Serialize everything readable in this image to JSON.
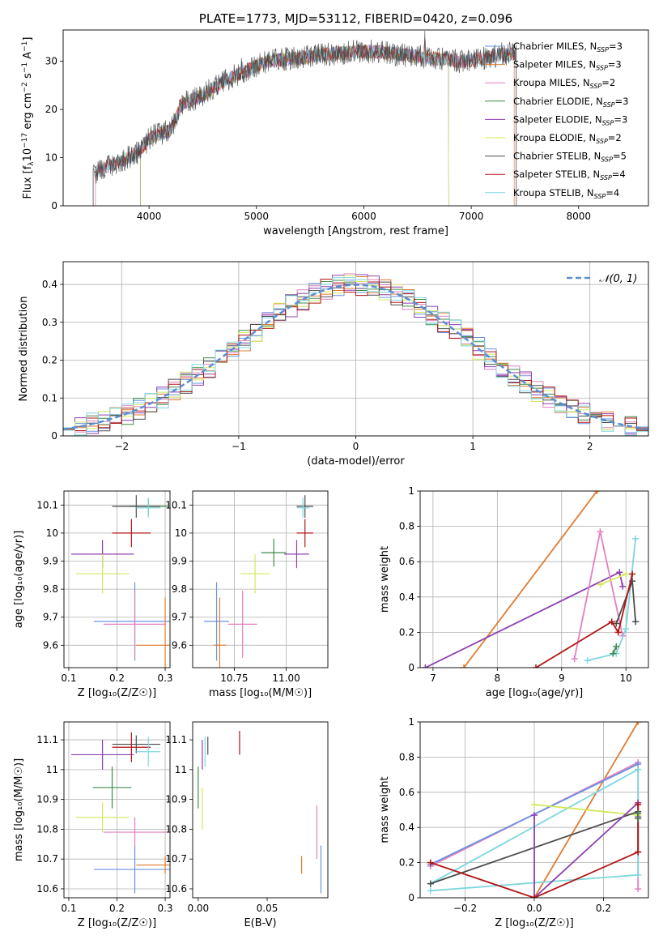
{
  "figure": {
    "title": "PLATE=1773, MJD=53112, FIBERID=0420, z=0.096",
    "series_colors": [
      "#6a93e0",
      "#e07b2e",
      "#e27fbf",
      "#3f8a4a",
      "#8e3fb0",
      "#d4e85a",
      "#4d4d4d",
      "#b31515",
      "#7dd6df"
    ]
  },
  "chart_data": [
    {
      "id": "spectrum",
      "type": "line",
      "title": "PLATE=1773, MJD=53112, FIBERID=0420, z=0.096",
      "xlabel": "wavelength [Angstrom, rest frame]",
      "ylabel_parts": [
        "Flux [f",
        "λ",
        "10",
        "−17",
        " erg cm",
        "−2",
        " s",
        "−1",
        " A",
        "−1",
        "]"
      ],
      "xlim": [
        3200,
        8650
      ],
      "ylim": [
        0,
        36.5
      ],
      "xticks": [
        4000,
        5000,
        6000,
        7000,
        8000
      ],
      "yticks": [
        0,
        10,
        20,
        30
      ],
      "grid": false,
      "legend_position": "top-right",
      "continuum_points": [
        [
          3480,
          6.5
        ],
        [
          3600,
          8
        ],
        [
          3800,
          10
        ],
        [
          3900,
          11
        ],
        [
          4000,
          14
        ],
        [
          4100,
          15
        ],
        [
          4200,
          15.5
        ],
        [
          4300,
          21
        ],
        [
          4500,
          23
        ],
        [
          4700,
          26
        ],
        [
          4900,
          28
        ],
        [
          5100,
          30
        ],
        [
          5300,
          30.5
        ],
        [
          5500,
          31
        ],
        [
          5700,
          31.5
        ],
        [
          5900,
          32
        ],
        [
          6100,
          32
        ],
        [
          6300,
          31.5
        ],
        [
          6500,
          31
        ],
        [
          6700,
          30.5
        ],
        [
          6900,
          30
        ],
        [
          7100,
          30.5
        ],
        [
          7300,
          31.5
        ],
        [
          7420,
          31.5
        ]
      ],
      "series": [
        {
          "name": "Chabrier MILES",
          "nssp": "3",
          "range": [
            3500,
            7400
          ]
        },
        {
          "name": "Salpeter MILES",
          "nssp": "3",
          "range": [
            3500,
            7400
          ]
        },
        {
          "name": "Kroupa MILES",
          "nssp": "2",
          "range": [
            3500,
            7420
          ]
        },
        {
          "name": "Chabrier ELODIE",
          "nssp": "3",
          "range": [
            3920,
            6790
          ]
        },
        {
          "name": "Salpeter ELODIE",
          "nssp": "3",
          "range": [
            3920,
            6790
          ]
        },
        {
          "name": "Kroupa ELODIE",
          "nssp": "2",
          "range": [
            3920,
            6790
          ]
        },
        {
          "name": "Chabrier STELIB",
          "nssp": "5",
          "range": [
            3480,
            7420
          ]
        },
        {
          "name": "Salpeter STELIB",
          "nssp": "4",
          "range": [
            3480,
            7420
          ]
        },
        {
          "name": "Kroupa STELIB",
          "nssp": "4",
          "range": [
            3480,
            7420
          ]
        }
      ]
    },
    {
      "id": "residuals",
      "type": "histogram",
      "xlabel": "(data-model)/error",
      "ylabel": "Normed distribution",
      "xlim": [
        -2.5,
        2.5
      ],
      "ylim": [
        0,
        0.46
      ],
      "xticks": [
        -2,
        -1,
        0,
        1,
        2
      ],
      "xticklabels": [
        "−2",
        "−1",
        "0",
        "1",
        "2"
      ],
      "yticks": [
        0.0,
        0.1,
        0.2,
        0.3,
        0.4
      ],
      "grid": true,
      "legend_label": "𝒩(0, 1)",
      "legend_position": "top-right",
      "bin_width": 0.1
    },
    {
      "id": "age_vs_z",
      "type": "scatter-errorbar",
      "xlabel": "Z [log₁₀(Z/Z☉)]",
      "ylabel": "age  [log₁₀(age/yr)]",
      "xlim": [
        0.09,
        0.31
      ],
      "ylim": [
        9.52,
        10.15
      ],
      "xticks": [
        0.1,
        0.2,
        0.3
      ],
      "yticks": [
        9.6,
        9.7,
        9.8,
        9.9,
        10.0,
        10.1
      ],
      "grid": true,
      "points": [
        {
          "series": 0,
          "x": 0.237,
          "y": 9.685,
          "xerr": 0.085,
          "yerr": 0.14
        },
        {
          "series": 1,
          "x": 0.3,
          "y": 9.6,
          "xerr": 0.06,
          "yerr": 0.17
        },
        {
          "series": 2,
          "x": 0.237,
          "y": 9.675,
          "xerr": 0.065,
          "yerr": 0.12
        },
        {
          "series": 3,
          "x": 0.265,
          "y": 10.095,
          "xerr": 0.04,
          "yerr": 0.03
        },
        {
          "series": 4,
          "x": 0.17,
          "y": 9.925,
          "xerr": 0.065,
          "yerr": 0.05
        },
        {
          "series": 5,
          "x": 0.17,
          "y": 9.855,
          "xerr": 0.055,
          "yerr": 0.07
        },
        {
          "series": 6,
          "x": 0.24,
          "y": 10.095,
          "xerr": 0.05,
          "yerr": 0.04
        },
        {
          "series": 7,
          "x": 0.23,
          "y": 10.0,
          "xerr": 0.04,
          "yerr": 0.05
        },
        {
          "series": 8,
          "x": 0.265,
          "y": 10.09,
          "xerr": 0.025,
          "yerr": 0.035
        }
      ]
    },
    {
      "id": "age_vs_mass",
      "type": "scatter-errorbar",
      "xlabel": "mass [log₁₀(M/M☉)]",
      "xlim": [
        10.55,
        11.2
      ],
      "ylim": [
        9.52,
        10.15
      ],
      "xticks": [
        10.75,
        11.0
      ],
      "xticklabels": [
        "10.75",
        "11.00"
      ],
      "yticks": [
        9.6,
        9.7,
        9.8,
        9.9,
        10.0,
        10.1
      ],
      "grid": true,
      "points": [
        {
          "series": 0,
          "x": 10.665,
          "y": 9.685,
          "xerr": 0.06,
          "yerr": 0.14
        },
        {
          "series": 1,
          "x": 10.68,
          "y": 9.6,
          "xerr": 0.03,
          "yerr": 0.17
        },
        {
          "series": 2,
          "x": 10.79,
          "y": 9.675,
          "xerr": 0.07,
          "yerr": 0.12
        },
        {
          "series": 3,
          "x": 10.94,
          "y": 9.93,
          "xerr": 0.06,
          "yerr": 0.05
        },
        {
          "series": 4,
          "x": 11.05,
          "y": 9.925,
          "xerr": 0.06,
          "yerr": 0.05
        },
        {
          "series": 5,
          "x": 10.85,
          "y": 9.855,
          "xerr": 0.07,
          "yerr": 0.07
        },
        {
          "series": 6,
          "x": 11.09,
          "y": 10.095,
          "xerr": 0.04,
          "yerr": 0.04
        },
        {
          "series": 7,
          "x": 11.09,
          "y": 10.0,
          "xerr": 0.04,
          "yerr": 0.05
        },
        {
          "series": 8,
          "x": 11.08,
          "y": 10.09,
          "xerr": 0.03,
          "yerr": 0.035
        }
      ]
    },
    {
      "id": "weight_vs_age",
      "type": "line",
      "xlabel": "age  [log₁₀(age/yr)]",
      "ylabel": "mass weight",
      "xlim": [
        6.8,
        10.35
      ],
      "ylim": [
        0,
        1.0
      ],
      "xticks": [
        7,
        8,
        9,
        10
      ],
      "yticks": [
        0.0,
        0.2,
        0.4,
        0.6,
        0.8,
        1.0
      ],
      "grid": true,
      "lines": [
        {
          "series": 1,
          "points": [
            [
              7.48,
              0.0
            ],
            [
              9.55,
              1.0
            ]
          ]
        },
        {
          "series": 4,
          "points": [
            [
              6.88,
              0.0
            ],
            [
              9.9,
              0.54
            ],
            [
              9.95,
              0.46
            ]
          ]
        },
        {
          "series": 2,
          "points": [
            [
              9.2,
              0.05
            ],
            [
              9.6,
              0.77
            ],
            [
              9.95,
              0.18
            ]
          ]
        },
        {
          "series": 5,
          "points": [
            [
              9.6,
              0.47
            ],
            [
              10.0,
              0.53
            ]
          ]
        },
        {
          "series": 8,
          "points": [
            [
              9.4,
              0.04
            ],
            [
              9.85,
              0.08
            ],
            [
              10.0,
              0.22
            ],
            [
              10.15,
              0.73
            ]
          ]
        },
        {
          "series": 6,
          "points": [
            [
              9.85,
              0.25
            ],
            [
              10.1,
              0.49
            ],
            [
              10.15,
              0.26
            ]
          ]
        },
        {
          "series": 7,
          "points": [
            [
              8.6,
              0.0
            ],
            [
              9.78,
              0.26
            ],
            [
              9.88,
              0.2
            ],
            [
              10.1,
              0.53
            ]
          ]
        },
        {
          "series": 3,
          "points": [
            [
              9.8,
              0.08
            ],
            [
              9.85,
              0.12
            ]
          ]
        }
      ]
    },
    {
      "id": "mass_vs_z",
      "type": "scatter-errorbar",
      "xlabel": "Z [log₁₀(Z/Z☉)]",
      "ylabel": "mass [log₁₀(M/M☉)]",
      "xlim": [
        0.09,
        0.31
      ],
      "ylim": [
        10.57,
        11.16
      ],
      "xticks": [
        0.1,
        0.2,
        0.3
      ],
      "yticks": [
        10.6,
        10.7,
        10.8,
        10.9,
        11.0,
        11.1
      ],
      "grid": true,
      "points": [
        {
          "series": 0,
          "x": 0.237,
          "y": 10.665,
          "xerr": 0.085,
          "yerr": 0.08
        },
        {
          "series": 1,
          "x": 0.3,
          "y": 10.68,
          "xerr": 0.06,
          "yerr": 0.03
        },
        {
          "series": 2,
          "x": 0.237,
          "y": 10.79,
          "xerr": 0.065,
          "yerr": 0.05
        },
        {
          "series": 3,
          "x": 0.19,
          "y": 10.94,
          "xerr": 0.04,
          "yerr": 0.07
        },
        {
          "series": 4,
          "x": 0.17,
          "y": 11.05,
          "xerr": 0.065,
          "yerr": 0.05
        },
        {
          "series": 5,
          "x": 0.17,
          "y": 10.84,
          "xerr": 0.055,
          "yerr": 0.05
        },
        {
          "series": 6,
          "x": 0.24,
          "y": 11.085,
          "xerr": 0.05,
          "yerr": 0.03
        },
        {
          "series": 7,
          "x": 0.23,
          "y": 11.075,
          "xerr": 0.04,
          "yerr": 0.05
        },
        {
          "series": 8,
          "x": 0.265,
          "y": 11.06,
          "xerr": 0.025,
          "yerr": 0.05
        }
      ]
    },
    {
      "id": "mass_vs_ebv",
      "type": "scatter-errorbar",
      "xlabel": "E(B-V)",
      "xlim": [
        -0.004,
        0.094
      ],
      "ylim": [
        10.57,
        11.16
      ],
      "xticks": [
        0.0,
        0.05
      ],
      "xticklabels": [
        "0.00",
        "0.05"
      ],
      "yticks": [
        10.6,
        10.7,
        10.8,
        10.9,
        11.0,
        11.1
      ],
      "grid": false,
      "points": [
        {
          "series": 0,
          "x": 0.089,
          "y": 10.665,
          "xerr": 0,
          "yerr": 0.08
        },
        {
          "series": 1,
          "x": 0.075,
          "y": 10.68,
          "xerr": 0,
          "yerr": 0.03
        },
        {
          "series": 2,
          "x": 0.086,
          "y": 10.79,
          "xerr": 0,
          "yerr": 0.09
        },
        {
          "series": 3,
          "x": 0.0,
          "y": 10.94,
          "xerr": 0,
          "yerr": 0.07
        },
        {
          "series": 4,
          "x": 0.003,
          "y": 11.05,
          "xerr": 0,
          "yerr": 0.05
        },
        {
          "series": 5,
          "x": 0.003,
          "y": 10.87,
          "xerr": 0,
          "yerr": 0.07
        },
        {
          "series": 6,
          "x": 0.007,
          "y": 11.08,
          "xerr": 0,
          "yerr": 0.03
        },
        {
          "series": 7,
          "x": 0.03,
          "y": 11.09,
          "xerr": 0,
          "yerr": 0.04
        },
        {
          "series": 8,
          "x": 0.005,
          "y": 11.06,
          "xerr": 0,
          "yerr": 0.05
        }
      ]
    },
    {
      "id": "weight_vs_z",
      "type": "line",
      "xlabel": "Z [log₁₀(Z/Z☉)]",
      "ylabel": "mass weight",
      "xlim": [
        -0.33,
        0.33
      ],
      "ylim": [
        0,
        1.0
      ],
      "xticks": [
        -0.2,
        0.0,
        0.2
      ],
      "xticklabels": [
        "−0.2",
        "0.0",
        "0.2"
      ],
      "yticks": [
        0.0,
        0.2,
        0.4,
        0.6,
        0.8,
        1.0
      ],
      "grid": true,
      "lines": [
        {
          "series": 1,
          "points": [
            [
              0.0,
              0.0
            ],
            [
              0.3,
              1.0
            ]
          ]
        },
        {
          "series": 2,
          "points": [
            [
              -0.3,
              0.18
            ],
            [
              0.3,
              0.77
            ],
            [
              0.3,
              0.05
            ]
          ]
        },
        {
          "series": 0,
          "points": [
            [
              -0.3,
              0.19
            ],
            [
              0.3,
              0.76
            ]
          ]
        },
        {
          "series": 8,
          "points": [
            [
              -0.3,
              0.08
            ],
            [
              0.3,
              0.73
            ],
            [
              0.3,
              0.13
            ],
            [
              -0.3,
              0.04
            ]
          ]
        },
        {
          "series": 5,
          "points": [
            [
              0.0,
              0.53
            ],
            [
              0.3,
              0.47
            ]
          ]
        },
        {
          "series": 6,
          "points": [
            [
              -0.3,
              0.08
            ],
            [
              0.3,
              0.49
            ],
            [
              0.3,
              0.26
            ]
          ]
        },
        {
          "series": 4,
          "points": [
            [
              0.0,
              0.47
            ],
            [
              0.0,
              0.0
            ],
            [
              0.3,
              0.54
            ],
            [
              0.3,
              0.46
            ]
          ]
        },
        {
          "series": 7,
          "points": [
            [
              -0.3,
              0.2
            ],
            [
              0.0,
              0.0
            ],
            [
              0.3,
              0.26
            ],
            [
              0.3,
              0.53
            ]
          ]
        },
        {
          "series": 3,
          "points": [
            [
              0.3,
              0.48
            ],
            [
              0.3,
              0.45
            ]
          ]
        }
      ]
    }
  ]
}
